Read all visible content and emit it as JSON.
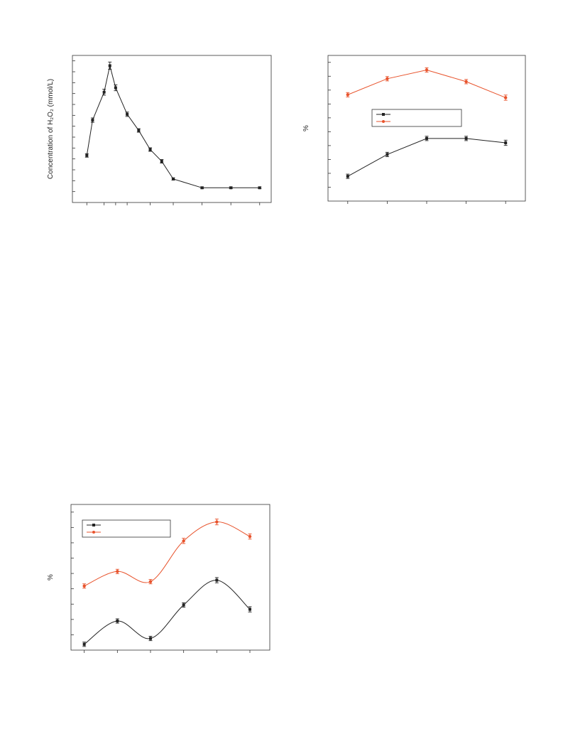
{
  "chart_data": [
    {
      "type": "line",
      "ylabel": "Concentration of H₂O₂ (mmol/L)",
      "x": [
        1,
        2,
        4,
        5,
        6,
        8,
        10,
        12,
        14,
        16,
        21,
        26,
        31
      ],
      "ylim": [
        0,
        100
      ],
      "xlim": [
        -1.5,
        33
      ],
      "series": [
        {
          "color": "#222222",
          "values": [
            32,
            56,
            75,
            93,
            78,
            60,
            49,
            36,
            28,
            16,
            10,
            10,
            10
          ],
          "errors": [
            1.2,
            1.5,
            2,
            2.5,
            2,
            1.5,
            1.2,
            1.2,
            1.2,
            0.8,
            0.6,
            0.6,
            0.6
          ]
        }
      ],
      "grid": false
    },
    {
      "type": "line",
      "ylabel": "%",
      "x": [
        1,
        2,
        3,
        4,
        5
      ],
      "xlim": [
        0.5,
        5.5
      ],
      "ylim": [
        0,
        100
      ],
      "legend": {
        "placement": "center-right",
        "entries": [
          "",
          ""
        ]
      },
      "series": [
        {
          "color": "#222222",
          "values": [
            17,
            32,
            43,
            43,
            40
          ],
          "errors": [
            1.5,
            1.5,
            1.5,
            1.5,
            1.8
          ]
        },
        {
          "color": "#e8532c",
          "values": [
            73,
            84,
            90,
            82,
            71
          ],
          "errors": [
            1.5,
            1.5,
            1.5,
            1.5,
            1.8
          ]
        }
      ],
      "grid": false
    },
    {
      "type": "line",
      "ylabel": "%",
      "x": [
        1,
        2,
        3,
        4,
        5,
        6
      ],
      "xlim": [
        0.6,
        6.6
      ],
      "ylim": [
        0,
        100
      ],
      "legend": {
        "placement": "top-left",
        "entries": [
          "",
          ""
        ]
      },
      "series": [
        {
          "color": "#222222",
          "values": [
            4,
            20,
            8,
            31,
            48,
            28
          ],
          "errors": [
            1.5,
            1.5,
            1.5,
            1.5,
            1.8,
            1.8
          ]
        },
        {
          "color": "#e8532c",
          "values": [
            44,
            54,
            47,
            75,
            88,
            78
          ],
          "errors": [
            1.5,
            1.5,
            1.5,
            1.8,
            2,
            1.8
          ]
        }
      ],
      "grid": false
    }
  ]
}
